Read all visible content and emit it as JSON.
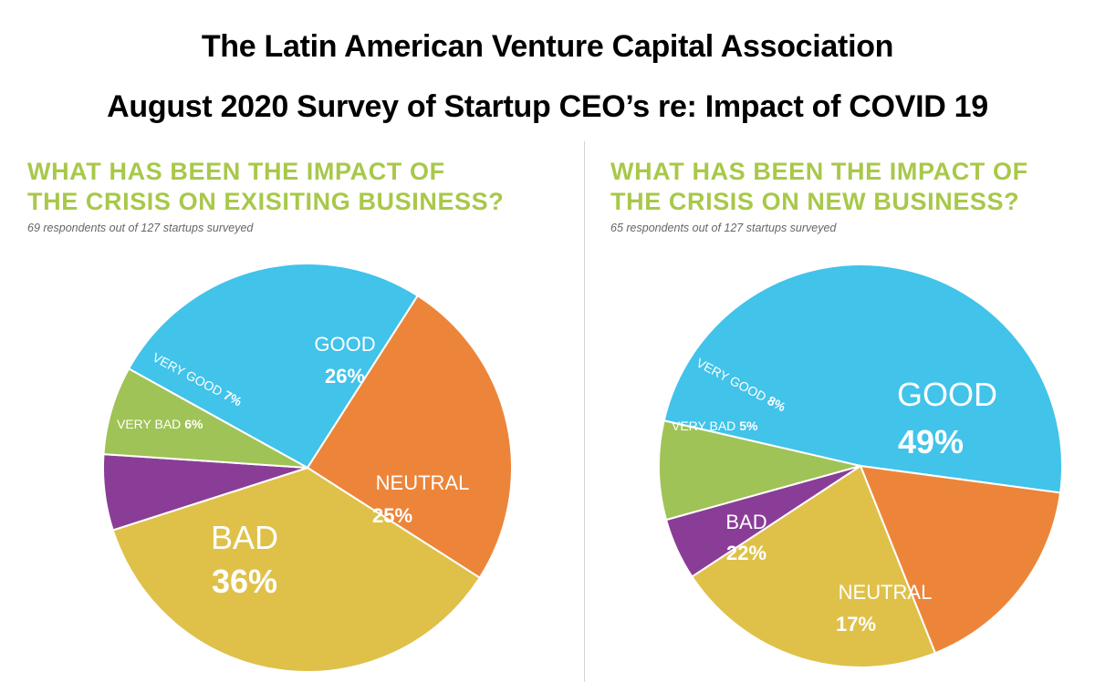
{
  "header": {
    "title": "The Latin American Venture Capital Association",
    "subtitle": "August 2020 Survey of Startup CEO’s re: Impact of COVID 19"
  },
  "colors": {
    "good": "#41c3ea",
    "neutral": "#ec853a",
    "bad": "#dfc14a",
    "very_bad": "#8a3d97",
    "very_good": "#9fc356",
    "title_green": "#a8c84a"
  },
  "chart_data": [
    {
      "type": "pie",
      "title_line1": "WHAT HAS BEEN THE IMPACT OF",
      "title_line2": "THE CRISIS ON EXISITING BUSINESS?",
      "subtitle": "69 respondents out of 127 startups surveyed",
      "slices": [
        {
          "label": "GOOD",
          "value": 26,
          "display": "26%",
          "color": "#41c3ea"
        },
        {
          "label": "NEUTRAL",
          "value": 25,
          "display": "25%",
          "color": "#ec853a"
        },
        {
          "label": "BAD",
          "value": 36,
          "display": "36%",
          "color": "#dfc14a"
        },
        {
          "label": "VERY BAD",
          "value": 6,
          "display": "6%",
          "color": "#8a3d97"
        },
        {
          "label": "VERY GOOD",
          "value": 7,
          "display": "7%",
          "color": "#9fc356"
        }
      ]
    },
    {
      "type": "pie",
      "title_line1": "WHAT HAS BEEN THE IMPACT OF",
      "title_line2": "THE CRISIS ON NEW BUSINESS?",
      "subtitle": "65 respondents out of 127 startups surveyed",
      "slices": [
        {
          "label": "GOOD",
          "value": 49,
          "display": "49%",
          "color": "#41c3ea"
        },
        {
          "label": "NEUTRAL",
          "value": 17,
          "display": "17%",
          "color": "#ec853a"
        },
        {
          "label": "BAD",
          "value": 22,
          "display": "22%",
          "color": "#dfc14a"
        },
        {
          "label": "VERY BAD",
          "value": 5,
          "display": "5%",
          "color": "#8a3d97"
        },
        {
          "label": "VERY GOOD",
          "value": 8,
          "display": "8%",
          "color": "#9fc356"
        }
      ]
    }
  ]
}
